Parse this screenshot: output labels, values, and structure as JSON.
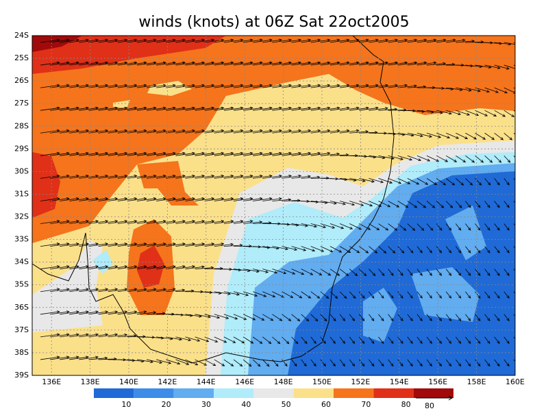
{
  "title": "winds (knots) at 06Z Sat 22oct2005",
  "lat_labels": [
    "24S",
    "25S",
    "26S",
    "27S",
    "28S",
    "29S",
    "30S",
    "31S",
    "32S",
    "33S",
    "34S",
    "35S",
    "36S",
    "37S",
    "38S",
    "39S"
  ],
  "lon_labels": [
    "136E",
    "138E",
    "140E",
    "142E",
    "144E",
    "146E",
    "148E",
    "150E",
    "152E",
    "154E",
    "156E",
    "158E",
    "160E"
  ],
  "colorbar": {
    "labels": [
      10,
      20,
      30,
      40,
      50,
      60,
      70,
      80
    ],
    "colors": [
      "#1f6ad6",
      "#3c8ce8",
      "#62acf0",
      "#b0ecfa",
      "#e8e8e8",
      "#fbe08a",
      "#f5741c",
      "#e03018",
      "#a00a0a"
    ]
  },
  "reference_vector": "80"
}
